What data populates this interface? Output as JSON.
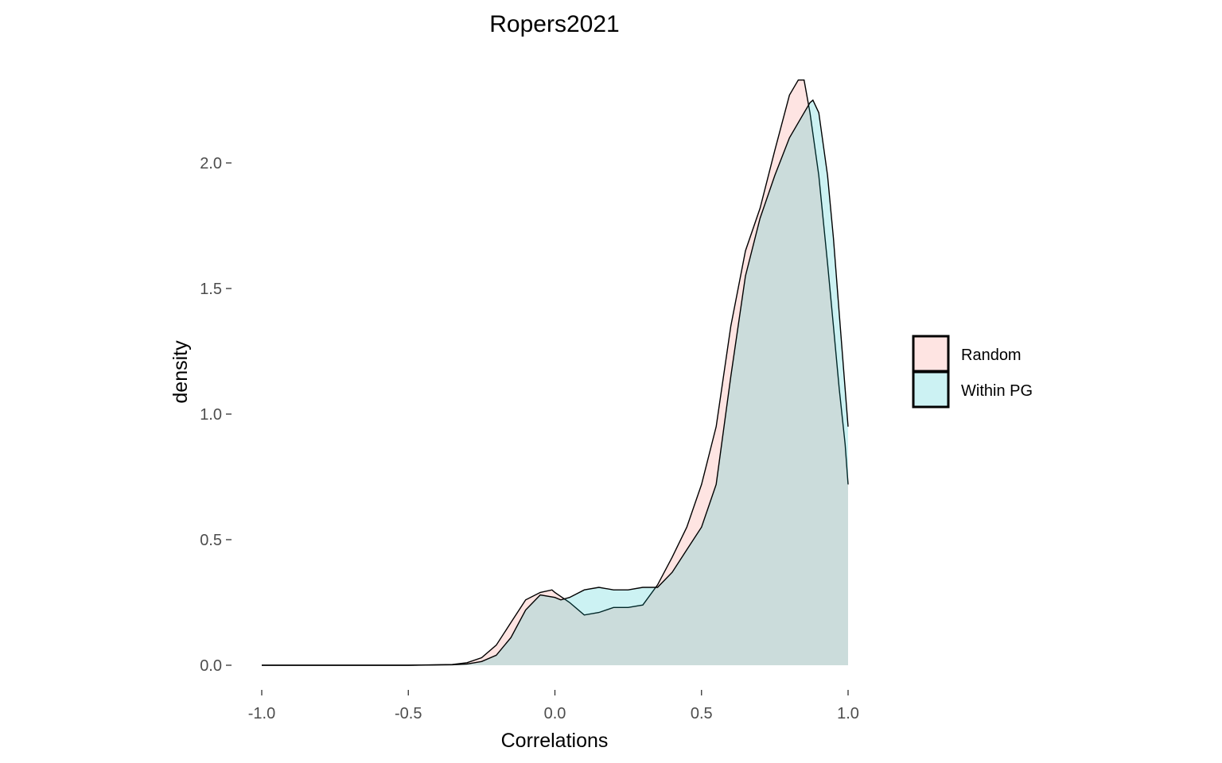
{
  "chart_data": {
    "type": "area",
    "title": "Ropers2021",
    "xlabel": "Correlations",
    "ylabel": "density",
    "xlim": [
      -1.0,
      1.0
    ],
    "ylim": [
      0,
      2.35
    ],
    "xticks": [
      "-1.0",
      "-0.5",
      "0.0",
      "0.5",
      "1.0"
    ],
    "yticks": [
      "0.0",
      "0.5",
      "1.0",
      "1.5",
      "2.0"
    ],
    "grid": false,
    "legend_position": "right",
    "series": [
      {
        "name": "Random",
        "color": "#f8766d",
        "x": [
          -1.0,
          -0.5,
          -0.35,
          -0.3,
          -0.25,
          -0.2,
          -0.15,
          -0.1,
          -0.05,
          -0.01,
          0.0,
          0.05,
          0.1,
          0.15,
          0.2,
          0.25,
          0.3,
          0.35,
          0.4,
          0.45,
          0.5,
          0.55,
          0.6,
          0.65,
          0.7,
          0.75,
          0.8,
          0.83,
          0.85,
          0.87,
          0.9,
          0.93,
          0.95,
          0.97,
          0.99,
          1.0
        ],
        "y": [
          0.0,
          0.0,
          0.003,
          0.01,
          0.03,
          0.08,
          0.17,
          0.26,
          0.29,
          0.3,
          0.29,
          0.25,
          0.2,
          0.21,
          0.23,
          0.23,
          0.24,
          0.32,
          0.43,
          0.55,
          0.72,
          0.95,
          1.35,
          1.65,
          1.82,
          2.05,
          2.27,
          2.33,
          2.33,
          2.2,
          1.95,
          1.6,
          1.35,
          1.1,
          0.88,
          0.72
        ]
      },
      {
        "name": "Within PG",
        "color": "#00bfc4",
        "x": [
          -1.0,
          -0.5,
          -0.35,
          -0.3,
          -0.25,
          -0.2,
          -0.15,
          -0.1,
          -0.05,
          0.0,
          0.02,
          0.05,
          0.1,
          0.15,
          0.2,
          0.25,
          0.3,
          0.35,
          0.4,
          0.45,
          0.5,
          0.55,
          0.6,
          0.65,
          0.7,
          0.75,
          0.8,
          0.85,
          0.87,
          0.88,
          0.9,
          0.93,
          0.95,
          0.97,
          0.99,
          1.0
        ],
        "y": [
          0.0,
          0.0,
          0.002,
          0.005,
          0.015,
          0.04,
          0.11,
          0.22,
          0.28,
          0.27,
          0.26,
          0.27,
          0.3,
          0.31,
          0.3,
          0.3,
          0.31,
          0.31,
          0.37,
          0.46,
          0.55,
          0.72,
          1.15,
          1.55,
          1.78,
          1.95,
          2.1,
          2.2,
          2.24,
          2.25,
          2.2,
          1.95,
          1.7,
          1.4,
          1.1,
          0.95
        ]
      }
    ]
  }
}
